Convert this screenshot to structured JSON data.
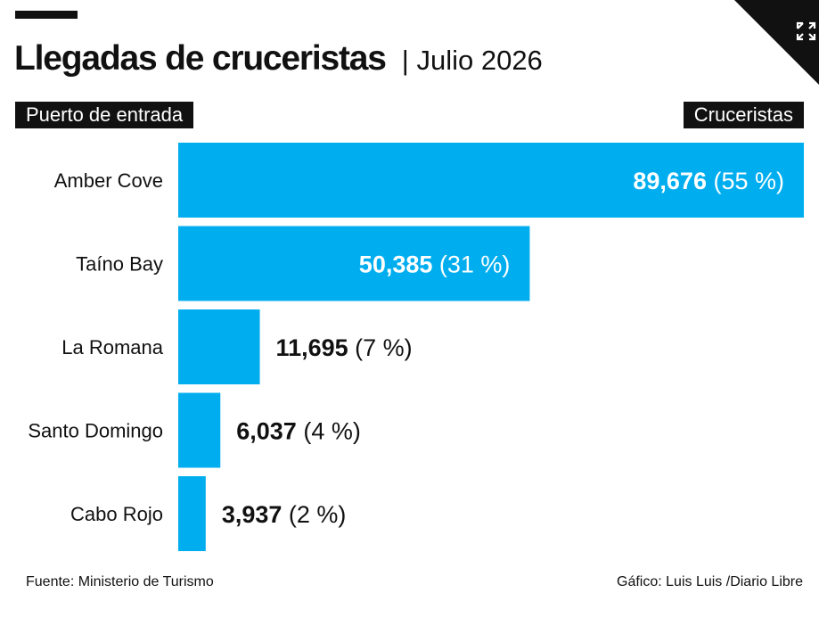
{
  "header": {
    "title": "Llegadas de cruceristas",
    "subtitle": "| Julio 2026",
    "left_column_label": "Puerto de entrada",
    "right_column_label": "Cruceristas"
  },
  "icons": {
    "expand": "expand-icon"
  },
  "colors": {
    "bar": "#00AEEF",
    "label_dark": "#111111",
    "label_light": "#ffffff",
    "header_bg": "#111111"
  },
  "chart_data": {
    "type": "bar",
    "orientation": "horizontal",
    "categories": [
      "Amber Cove",
      "Taíno Bay",
      "La Romana",
      "Santo Domingo",
      "Cabo Rojo"
    ],
    "values": [
      89676,
      50385,
      11695,
      6037,
      3937
    ],
    "value_labels": [
      "89,676",
      "50,385",
      "11,695",
      "6,037",
      "3,937"
    ],
    "percent_labels": [
      "(55 %)",
      "(31 %)",
      "(7 %)",
      "(4 %)",
      "(2 %)"
    ],
    "xlim": [
      0,
      89676
    ],
    "grid": false,
    "legend": "none"
  },
  "footer": {
    "source": "Fuente: Ministerio de Turismo",
    "credit": "Gáfico: Luis Luis /Diario Libre"
  }
}
